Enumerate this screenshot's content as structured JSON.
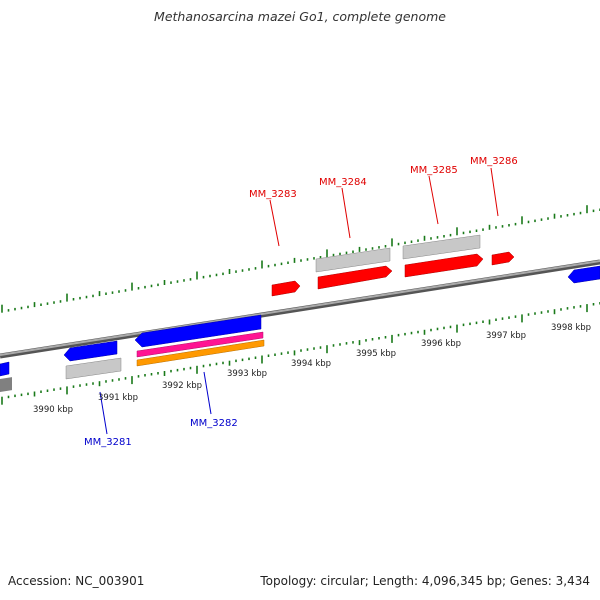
{
  "title": "Methanosarcina mazei Go1, complete genome",
  "footer": {
    "accession": "Accession: NC_003901",
    "topology": "Topology: circular; Length: 4,096,345 bp; Genes: 3,434"
  },
  "colors": {
    "forward_gene_label": "#e00000",
    "reverse_gene_label": "#0000cc",
    "tick": "#1a7a1a",
    "backbone": "#7a7a7a",
    "gene_red": "#ff0000",
    "gene_blue": "#0000ff",
    "gene_gray": "#c0c0c0",
    "gene_pink": "#ff1493",
    "gene_orange": "#ff9900"
  },
  "kbp_labels": [
    "3990 kbp",
    "3991 kbp",
    "3992 kbp",
    "3993 kbp",
    "3994 kbp",
    "3995 kbp",
    "3996 kbp",
    "3997 kbp",
    "3998 kbp"
  ],
  "gene_labels": [
    {
      "text": "MM_3281",
      "strand": "reverse"
    },
    {
      "text": "MM_3282",
      "strand": "reverse"
    },
    {
      "text": "MM_3283",
      "strand": "forward"
    },
    {
      "text": "MM_3284",
      "strand": "forward"
    },
    {
      "text": "MM_3285",
      "strand": "forward"
    },
    {
      "text": "MM_3286",
      "strand": "forward"
    }
  ]
}
